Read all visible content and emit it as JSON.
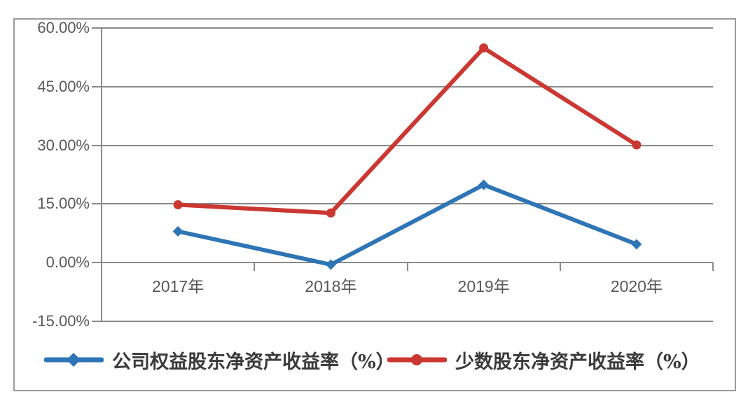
{
  "chart_data": {
    "type": "line",
    "title": "",
    "categories": [
      "2017年",
      "2018年",
      "2019年",
      "2020年"
    ],
    "series": [
      {
        "name": "公司权益股东净资产收益率（%）",
        "color": "#2E75B6",
        "marker": "diamond",
        "values": [
          8.0,
          -0.5,
          19.9,
          4.7
        ]
      },
      {
        "name": "少数股东净资产收益率（%）",
        "color": "#CB3731",
        "marker": "circle",
        "values": [
          14.8,
          12.7,
          54.9,
          30.1
        ]
      }
    ],
    "ylim": [
      -15,
      60
    ],
    "y_ticks": [
      60,
      45,
      30,
      15,
      0,
      -15
    ],
    "y_tick_labels": [
      "60.00%",
      "45.00%",
      "30.00%",
      "15.00%",
      "0.00%",
      "-15.00%"
    ],
    "xlabel": "",
    "ylabel": "",
    "grid": "horizontal",
    "legend_position": "bottom",
    "style": {
      "grid_color": "#8a8a8a",
      "axis_color": "#8a8a8a",
      "axis_label_color": "#595959",
      "legend_text_color": "#3a3a3a",
      "frame_border_color": "#9a9a9a",
      "background_color": "#ffffff"
    }
  }
}
